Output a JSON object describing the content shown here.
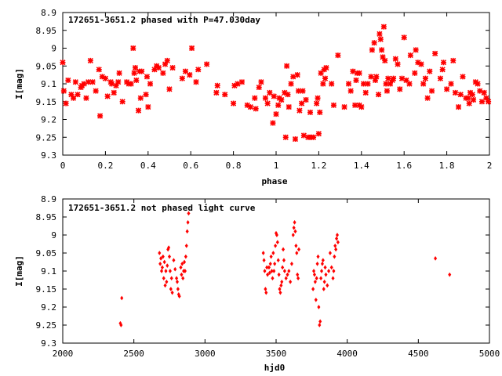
{
  "chart_data": [
    {
      "type": "scatter",
      "title": "172651-3651.2 phased with P=47.030day",
      "xlabel": "phase",
      "ylabel": "I[mag]",
      "xlim": [
        0,
        2
      ],
      "ylim": [
        9.3,
        8.9
      ],
      "y_inverted": true,
      "x_ticks": [
        "0",
        "0.2",
        "0.4",
        "0.6",
        "0.8",
        "1",
        "1.2",
        "1.4",
        "1.6",
        "1.8",
        "2"
      ],
      "y_ticks": [
        "8.9",
        "8.95",
        "9",
        "9.05",
        "9.1",
        "9.15",
        "9.2",
        "9.25",
        "9.3"
      ],
      "grid": false,
      "marker": "star",
      "color": "#ff0000",
      "points": [
        [
          0.0,
          9.04
        ],
        [
          0.005,
          9.12
        ],
        [
          0.015,
          9.155
        ],
        [
          0.025,
          9.09
        ],
        [
          0.04,
          9.13
        ],
        [
          0.05,
          9.14
        ],
        [
          0.06,
          9.095
        ],
        [
          0.07,
          9.13
        ],
        [
          0.085,
          9.11
        ],
        [
          0.09,
          9.105
        ],
        [
          0.1,
          9.1
        ],
        [
          0.11,
          9.14
        ],
        [
          0.12,
          9.095
        ],
        [
          0.13,
          9.035
        ],
        [
          0.14,
          9.095
        ],
        [
          0.155,
          9.12
        ],
        [
          0.17,
          9.06
        ],
        [
          0.175,
          9.19
        ],
        [
          0.185,
          9.08
        ],
        [
          0.2,
          9.085
        ],
        [
          0.21,
          9.135
        ],
        [
          0.225,
          9.095
        ],
        [
          0.23,
          9.1
        ],
        [
          0.24,
          9.125
        ],
        [
          0.25,
          9.105
        ],
        [
          0.26,
          9.095
        ],
        [
          0.265,
          9.07
        ],
        [
          0.28,
          9.15
        ],
        [
          0.3,
          9.095
        ],
        [
          0.31,
          9.1
        ],
        [
          0.32,
          9.1
        ],
        [
          0.33,
          9.0
        ],
        [
          0.335,
          9.07
        ],
        [
          0.34,
          9.055
        ],
        [
          0.345,
          9.09
        ],
        [
          0.355,
          9.175
        ],
        [
          0.36,
          9.065
        ],
        [
          0.365,
          9.14
        ],
        [
          0.37,
          9.065
        ],
        [
          0.39,
          9.13
        ],
        [
          0.395,
          9.08
        ],
        [
          0.4,
          9.165
        ],
        [
          0.41,
          9.1
        ],
        [
          0.43,
          9.06
        ],
        [
          0.44,
          9.05
        ],
        [
          0.45,
          9.055
        ],
        [
          0.47,
          9.07
        ],
        [
          0.48,
          9.045
        ],
        [
          0.49,
          9.035
        ],
        [
          0.5,
          9.115
        ],
        [
          0.515,
          9.055
        ],
        [
          0.56,
          9.085
        ],
        [
          0.575,
          9.065
        ],
        [
          0.595,
          9.075
        ],
        [
          0.605,
          9.0
        ],
        [
          0.625,
          9.095
        ],
        [
          0.635,
          9.06
        ],
        [
          0.675,
          9.045
        ],
        [
          0.72,
          9.125
        ],
        [
          0.725,
          9.105
        ],
        [
          0.76,
          9.13
        ],
        [
          0.8,
          9.155
        ],
        [
          0.805,
          9.105
        ],
        [
          0.82,
          9.1
        ],
        [
          0.84,
          9.095
        ],
        [
          0.865,
          9.16
        ],
        [
          0.88,
          9.165
        ],
        [
          0.9,
          9.14
        ],
        [
          0.905,
          9.17
        ],
        [
          0.92,
          9.11
        ],
        [
          0.93,
          9.095
        ],
        [
          0.95,
          9.14
        ],
        [
          0.96,
          9.155
        ],
        [
          0.97,
          9.125
        ],
        [
          0.985,
          9.21
        ],
        [
          0.99,
          9.135
        ],
        [
          1.0,
          9.185
        ],
        [
          1.01,
          9.16
        ],
        [
          1.015,
          9.14
        ],
        [
          1.025,
          9.145
        ],
        [
          1.04,
          9.125
        ],
        [
          1.045,
          9.25
        ],
        [
          1.05,
          9.05
        ],
        [
          1.055,
          9.13
        ],
        [
          1.06,
          9.165
        ],
        [
          1.07,
          9.1
        ],
        [
          1.08,
          9.08
        ],
        [
          1.09,
          9.255
        ],
        [
          1.1,
          9.075
        ],
        [
          1.105,
          9.12
        ],
        [
          1.11,
          9.175
        ],
        [
          1.12,
          9.155
        ],
        [
          1.125,
          9.12
        ],
        [
          1.13,
          9.245
        ],
        [
          1.14,
          9.145
        ],
        [
          1.15,
          9.25
        ],
        [
          1.16,
          9.18
        ],
        [
          1.165,
          9.25
        ],
        [
          1.175,
          9.25
        ],
        [
          1.19,
          9.155
        ],
        [
          1.195,
          9.14
        ],
        [
          1.2,
          9.24
        ],
        [
          1.205,
          9.18
        ],
        [
          1.21,
          9.07
        ],
        [
          1.22,
          9.1
        ],
        [
          1.225,
          9.06
        ],
        [
          1.23,
          9.085
        ],
        [
          1.235,
          9.055
        ],
        [
          1.26,
          9.1
        ],
        [
          1.27,
          9.16
        ],
        [
          1.29,
          9.02
        ],
        [
          1.32,
          9.165
        ],
        [
          1.34,
          9.1
        ],
        [
          1.35,
          9.12
        ],
        [
          1.36,
          9.065
        ],
        [
          1.37,
          9.16
        ],
        [
          1.375,
          9.09
        ],
        [
          1.38,
          9.07
        ],
        [
          1.39,
          9.07
        ],
        [
          1.39,
          9.16
        ],
        [
          1.4,
          9.165
        ],
        [
          1.41,
          9.1
        ],
        [
          1.42,
          9.125
        ],
        [
          1.43,
          9.1
        ],
        [
          1.445,
          9.08
        ],
        [
          1.45,
          9.005
        ],
        [
          1.46,
          8.985
        ],
        [
          1.465,
          9.09
        ],
        [
          1.47,
          9.08
        ],
        [
          1.48,
          9.13
        ],
        [
          1.485,
          8.96
        ],
        [
          1.49,
          8.975
        ],
        [
          1.495,
          9.005
        ],
        [
          1.5,
          9.025
        ],
        [
          1.505,
          8.94
        ],
        [
          1.51,
          9.035
        ],
        [
          1.515,
          9.1
        ],
        [
          1.52,
          9.12
        ],
        [
          1.525,
          9.085
        ],
        [
          1.535,
          9.1
        ],
        [
          1.545,
          9.09
        ],
        [
          1.55,
          9.085
        ],
        [
          1.56,
          9.03
        ],
        [
          1.57,
          9.045
        ],
        [
          1.58,
          9.115
        ],
        [
          1.59,
          9.085
        ],
        [
          1.6,
          8.97
        ],
        [
          1.61,
          9.09
        ],
        [
          1.625,
          9.1
        ],
        [
          1.63,
          9.02
        ],
        [
          1.65,
          9.07
        ],
        [
          1.655,
          9.005
        ],
        [
          1.665,
          9.04
        ],
        [
          1.68,
          9.045
        ],
        [
          1.69,
          9.1
        ],
        [
          1.7,
          9.085
        ],
        [
          1.71,
          9.14
        ],
        [
          1.72,
          9.065
        ],
        [
          1.73,
          9.12
        ],
        [
          1.745,
          9.015
        ],
        [
          1.77,
          9.085
        ],
        [
          1.78,
          9.06
        ],
        [
          1.785,
          9.04
        ],
        [
          1.8,
          9.115
        ],
        [
          1.82,
          9.1
        ],
        [
          1.83,
          9.035
        ],
        [
          1.84,
          9.125
        ],
        [
          1.855,
          9.165
        ],
        [
          1.865,
          9.13
        ],
        [
          1.875,
          9.08
        ],
        [
          1.89,
          9.14
        ],
        [
          1.9,
          9.14
        ],
        [
          1.905,
          9.155
        ],
        [
          1.91,
          9.125
        ],
        [
          1.92,
          9.13
        ],
        [
          1.925,
          9.145
        ],
        [
          1.935,
          9.095
        ],
        [
          1.945,
          9.1
        ],
        [
          1.955,
          9.12
        ],
        [
          1.965,
          9.15
        ],
        [
          1.975,
          9.125
        ],
        [
          1.985,
          9.14
        ],
        [
          1.995,
          9.15
        ]
      ]
    },
    {
      "type": "scatter",
      "title": "172651-3651.2 not phased light curve",
      "xlabel": "hjd0",
      "ylabel": "I[mag]",
      "xlim": [
        2000,
        5000
      ],
      "ylim": [
        9.3,
        8.9
      ],
      "y_inverted": true,
      "x_ticks": [
        "2000",
        "2500",
        "3000",
        "3500",
        "4000",
        "4500",
        "5000"
      ],
      "y_ticks": [
        "8.9",
        "8.95",
        "9",
        "9.05",
        "9.1",
        "9.15",
        "9.2",
        "9.25",
        "9.3"
      ],
      "grid": false,
      "marker": "diamond",
      "color": "#ff0000",
      "points": [
        [
          2405,
          9.245
        ],
        [
          2410,
          9.25
        ],
        [
          2415,
          9.175
        ],
        [
          2680,
          9.05
        ],
        [
          2685,
          9.08
        ],
        [
          2690,
          9.065
        ],
        [
          2695,
          9.1
        ],
        [
          2700,
          9.09
        ],
        [
          2705,
          9.06
        ],
        [
          2710,
          9.12
        ],
        [
          2715,
          9.075
        ],
        [
          2720,
          9.14
        ],
        [
          2725,
          9.1
        ],
        [
          2730,
          9.13
        ],
        [
          2735,
          9.085
        ],
        [
          2740,
          9.04
        ],
        [
          2745,
          9.035
        ],
        [
          2750,
          9.06
        ],
        [
          2755,
          9.1
        ],
        [
          2760,
          9.15
        ],
        [
          2765,
          9.12
        ],
        [
          2770,
          9.16
        ],
        [
          2780,
          9.07
        ],
        [
          2790,
          9.095
        ],
        [
          2800,
          9.12
        ],
        [
          2805,
          9.13
        ],
        [
          2810,
          9.15
        ],
        [
          2815,
          9.165
        ],
        [
          2820,
          9.17
        ],
        [
          2830,
          9.09
        ],
        [
          2835,
          9.11
        ],
        [
          2840,
          9.08
        ],
        [
          2845,
          9.12
        ],
        [
          2850,
          9.1
        ],
        [
          2855,
          9.075
        ],
        [
          2860,
          9.1
        ],
        [
          2865,
          9.06
        ],
        [
          2870,
          9.03
        ],
        [
          2875,
          8.99
        ],
        [
          2880,
          8.965
        ],
        [
          2885,
          8.94
        ],
        [
          3410,
          9.05
        ],
        [
          3415,
          9.07
        ],
        [
          3420,
          9.1
        ],
        [
          3425,
          9.15
        ],
        [
          3430,
          9.16
        ],
        [
          3435,
          9.09
        ],
        [
          3440,
          9.11
        ],
        [
          3450,
          9.09
        ],
        [
          3455,
          9.105
        ],
        [
          3460,
          9.08
        ],
        [
          3465,
          9.06
        ],
        [
          3470,
          9.1
        ],
        [
          3475,
          9.12
        ],
        [
          3480,
          9.05
        ],
        [
          3485,
          9.1
        ],
        [
          3490,
          9.08
        ],
        [
          3495,
          9.03
        ],
        [
          3500,
          8.995
        ],
        [
          3505,
          9.0
        ],
        [
          3510,
          9.02
        ],
        [
          3515,
          9.07
        ],
        [
          3520,
          9.11
        ],
        [
          3525,
          9.15
        ],
        [
          3530,
          9.16
        ],
        [
          3535,
          9.14
        ],
        [
          3540,
          9.13
        ],
        [
          3545,
          9.09
        ],
        [
          3550,
          9.04
        ],
        [
          3555,
          9.07
        ],
        [
          3560,
          9.1
        ],
        [
          3570,
          9.12
        ],
        [
          3580,
          9.11
        ],
        [
          3590,
          9.1
        ],
        [
          3600,
          9.13
        ],
        [
          3610,
          9.08
        ],
        [
          3620,
          9.0
        ],
        [
          3625,
          8.98
        ],
        [
          3630,
          8.965
        ],
        [
          3635,
          8.99
        ],
        [
          3640,
          9.03
        ],
        [
          3645,
          9.05
        ],
        [
          3650,
          9.11
        ],
        [
          3655,
          9.12
        ],
        [
          3660,
          9.04
        ],
        [
          3760,
          9.15
        ],
        [
          3765,
          9.1
        ],
        [
          3770,
          9.11
        ],
        [
          3775,
          9.13
        ],
        [
          3780,
          9.18
        ],
        [
          3785,
          9.12
        ],
        [
          3790,
          9.08
        ],
        [
          3795,
          9.06
        ],
        [
          3800,
          9.2
        ],
        [
          3805,
          9.25
        ],
        [
          3810,
          9.24
        ],
        [
          3815,
          9.12
        ],
        [
          3820,
          9.1
        ],
        [
          3825,
          9.08
        ],
        [
          3830,
          9.07
        ],
        [
          3835,
          9.15
        ],
        [
          3840,
          9.13
        ],
        [
          3845,
          9.09
        ],
        [
          3850,
          9.11
        ],
        [
          3860,
          9.14
        ],
        [
          3870,
          9.1
        ],
        [
          3880,
          9.05
        ],
        [
          3890,
          9.09
        ],
        [
          3900,
          9.12
        ],
        [
          3905,
          9.1
        ],
        [
          3910,
          9.06
        ],
        [
          3915,
          9.03
        ],
        [
          3920,
          9.04
        ],
        [
          3925,
          9.01
        ],
        [
          3930,
          9.0
        ],
        [
          3935,
          9.02
        ],
        [
          4620,
          9.065
        ],
        [
          4720,
          9.11
        ]
      ]
    }
  ]
}
